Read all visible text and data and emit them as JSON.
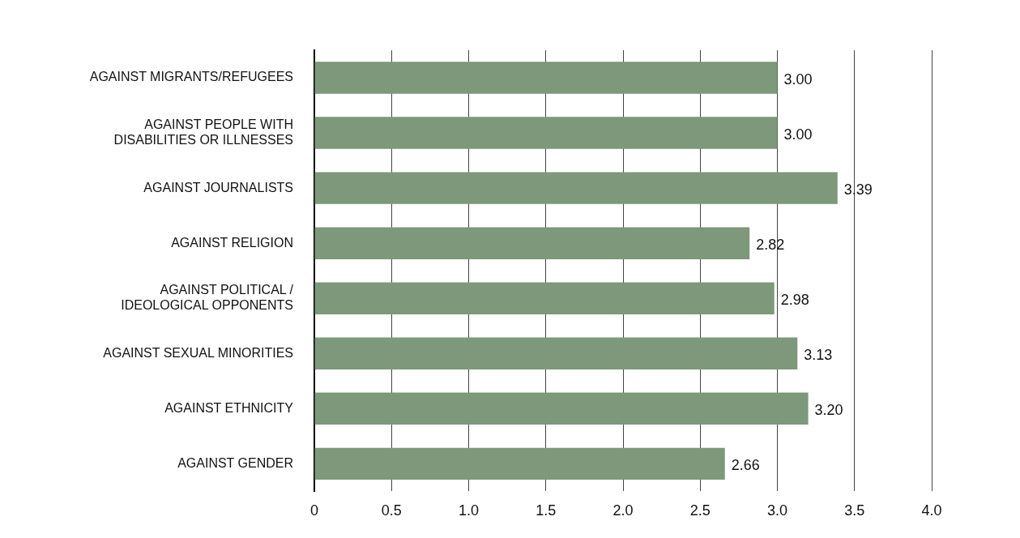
{
  "chart_data": {
    "type": "bar",
    "orientation": "horizontal",
    "categories": [
      "AGAINST MIGRANTS/REFUGEES",
      "AGAINST PEOPLE WITH DISABILITIES OR ILLNESSES",
      "AGAINST JOURNALISTS",
      "AGAINST RELIGION",
      "AGAINST POLITICAL / IDEOLOGICAL OPPONENTS",
      "AGAINST SEXUAL MINORITIES",
      "AGAINST ETHNICITY",
      "AGAINST GENDER"
    ],
    "values": [
      3.0,
      3.0,
      3.39,
      2.82,
      2.98,
      3.13,
      3.2,
      2.66
    ],
    "color": "#7d987a",
    "xlim": [
      0,
      4
    ],
    "xticks": [
      0,
      0.5,
      {
        "value": 1,
        "label": "1.0"
      },
      {
        "value": 1.5,
        "label": "1.5"
      },
      {
        "value": 2,
        "label": "2.0"
      },
      {
        "value": 2.5,
        "label": "2.5"
      },
      {
        "value": 3,
        "label": "3.0"
      },
      {
        "value": 3.5,
        "label": "3.5"
      },
      {
        "value": 4,
        "label": "4.0"
      }
    ],
    "value_labels": [
      "3.00",
      "3.00",
      "3.39",
      "2.82",
      "2.98",
      "3.13",
      "3.20",
      "2.66"
    ],
    "grid": "x",
    "legend": false
  }
}
